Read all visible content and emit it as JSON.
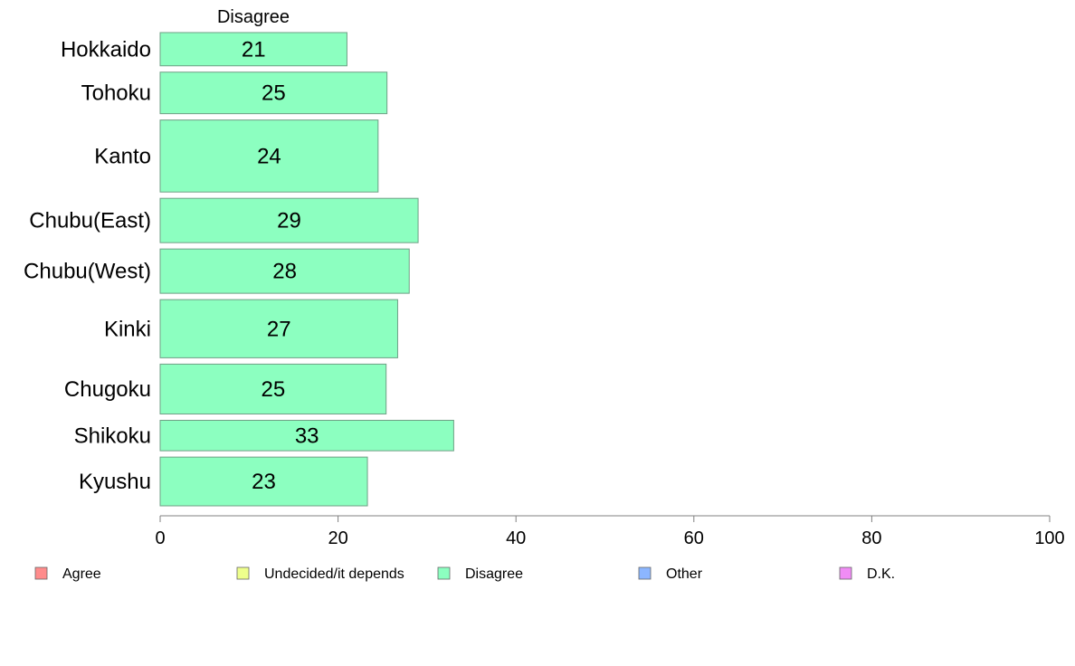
{
  "chart_data": {
    "type": "bar",
    "orientation": "horizontal",
    "series_title": "Disagree",
    "categories": [
      "Hokkaido",
      "Tohoku",
      "Kanto",
      "Chubu(East)",
      "Chubu(West)",
      "Kinki",
      "Chugoku",
      "Shikoku",
      "Kyushu"
    ],
    "values": [
      21,
      25.5,
      24.5,
      29,
      28,
      26.7,
      25.4,
      33,
      23.3
    ],
    "value_labels": [
      "21",
      "25",
      "24",
      "29",
      "28",
      "27",
      "25",
      "33",
      "23"
    ],
    "bar_thickness_weights": [
      0.6,
      0.75,
      1.3,
      0.8,
      0.8,
      1.05,
      0.9,
      0.55,
      0.88
    ],
    "xlim": [
      0,
      100
    ],
    "xticks": [
      0,
      20,
      40,
      60,
      80,
      100
    ],
    "bar_color": "#8cffc0",
    "bar_border_color": "#6f9f85",
    "axis_color": "#808080",
    "legend": [
      {
        "label": "Agree",
        "color": "#ff8c8c"
      },
      {
        "label": "Undecided/it depends",
        "color": "#eeff8c"
      },
      {
        "label": "Disagree",
        "color": "#8cffc0"
      },
      {
        "label": "Other",
        "color": "#8cb6ff"
      },
      {
        "label": "D.K.",
        "color": "#f08cf5"
      }
    ],
    "legend_position": "bottom",
    "grid": false
  }
}
